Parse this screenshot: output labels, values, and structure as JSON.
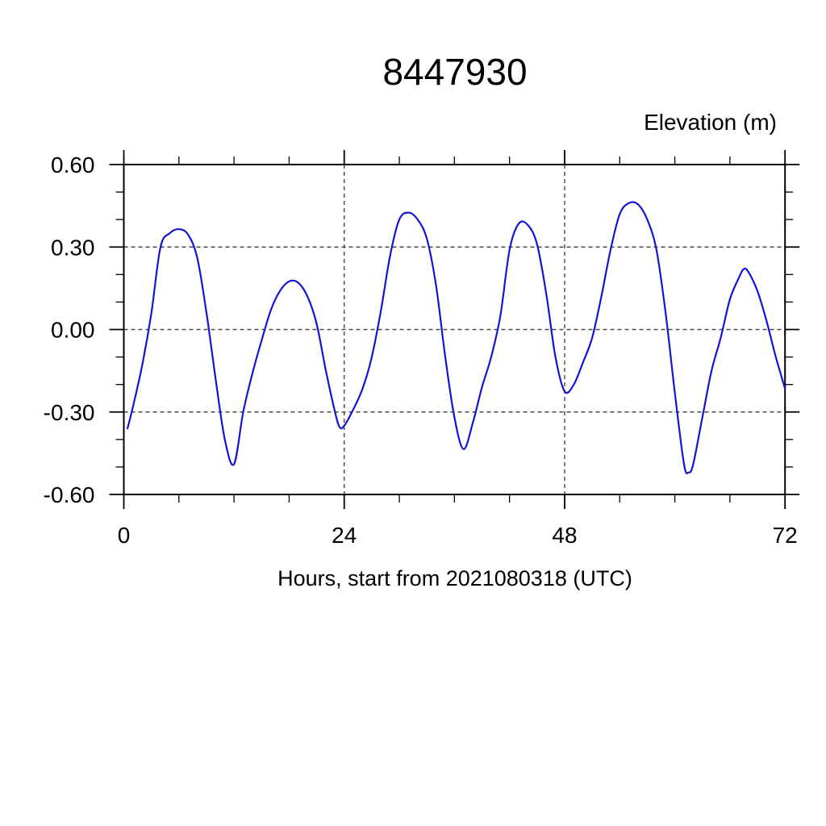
{
  "page": {
    "background": "#ffffff"
  },
  "chart": {
    "title": "8447930",
    "y_axis_title": "Elevation (m)",
    "x_axis_title": "Hours, start from 2021080318 (UTC)",
    "axis_color": "#000000",
    "grid_color": "#4a4a4a",
    "line_color": "#1414d4",
    "text_color": "#000000"
  },
  "chart_data": {
    "type": "line",
    "title": "8447930",
    "xlabel": "Hours, start from 2021080318 (UTC)",
    "ylabel": "Elevation (m)",
    "xlim": [
      0,
      72
    ],
    "ylim": [
      -0.6,
      0.6
    ],
    "x_major_ticks": [
      0,
      24,
      48,
      72
    ],
    "x_tick_labels": [
      "0",
      "24",
      "48",
      "72"
    ],
    "x_minor_tick_step": 6,
    "y_major_ticks": [
      0.6,
      0.3,
      0,
      -0.3,
      -0.6
    ],
    "y_tick_labels": [
      "0.60",
      "0.30",
      "0.00",
      "-0.30",
      "-0.60"
    ],
    "y_minor_tick_step": 0.1,
    "grid": true,
    "grid_x": [
      24,
      48
    ],
    "grid_y": [
      0.6,
      0.3,
      0,
      -0.3,
      -0.6
    ],
    "legend": null,
    "series": [
      {
        "name": "elevation",
        "color": "#1414d4",
        "x": [
          0.4,
          1,
          2,
          3,
          4,
          5,
          6,
          7,
          8,
          9,
          10,
          11,
          12,
          13,
          14,
          15,
          16,
          17,
          18,
          19,
          20,
          21,
          22,
          23,
          23.5,
          24,
          25,
          26,
          27,
          28,
          29,
          30,
          31,
          32,
          33,
          34,
          35,
          36,
          37,
          38,
          39,
          40,
          41,
          42,
          43,
          44,
          45,
          46,
          47,
          48,
          49,
          50,
          51,
          52,
          53,
          54,
          55,
          56,
          57,
          58,
          59,
          60,
          61,
          61.5,
          62,
          63,
          64,
          65,
          66,
          67,
          67.5,
          68,
          69,
          70,
          71,
          72
        ],
        "y": [
          -0.36,
          -0.28,
          -0.13,
          0.06,
          0.3,
          0.35,
          0.365,
          0.345,
          0.26,
          0.06,
          -0.18,
          -0.4,
          -0.49,
          -0.3,
          -0.16,
          -0.04,
          0.07,
          0.14,
          0.175,
          0.17,
          0.12,
          0.02,
          -0.15,
          -0.3,
          -0.355,
          -0.35,
          -0.29,
          -0.215,
          -0.1,
          0.07,
          0.27,
          0.4,
          0.425,
          0.4,
          0.33,
          0.16,
          -0.1,
          -0.32,
          -0.435,
          -0.34,
          -0.21,
          -0.1,
          0.05,
          0.29,
          0.385,
          0.38,
          0.31,
          0.13,
          -0.1,
          -0.225,
          -0.2,
          -0.12,
          -0.03,
          0.12,
          0.29,
          0.42,
          0.46,
          0.455,
          0.4,
          0.29,
          0.06,
          -0.23,
          -0.49,
          -0.52,
          -0.49,
          -0.32,
          -0.15,
          -0.03,
          0.11,
          0.19,
          0.22,
          0.21,
          0.14,
          0.03,
          -0.1,
          -0.215
        ]
      }
    ]
  }
}
